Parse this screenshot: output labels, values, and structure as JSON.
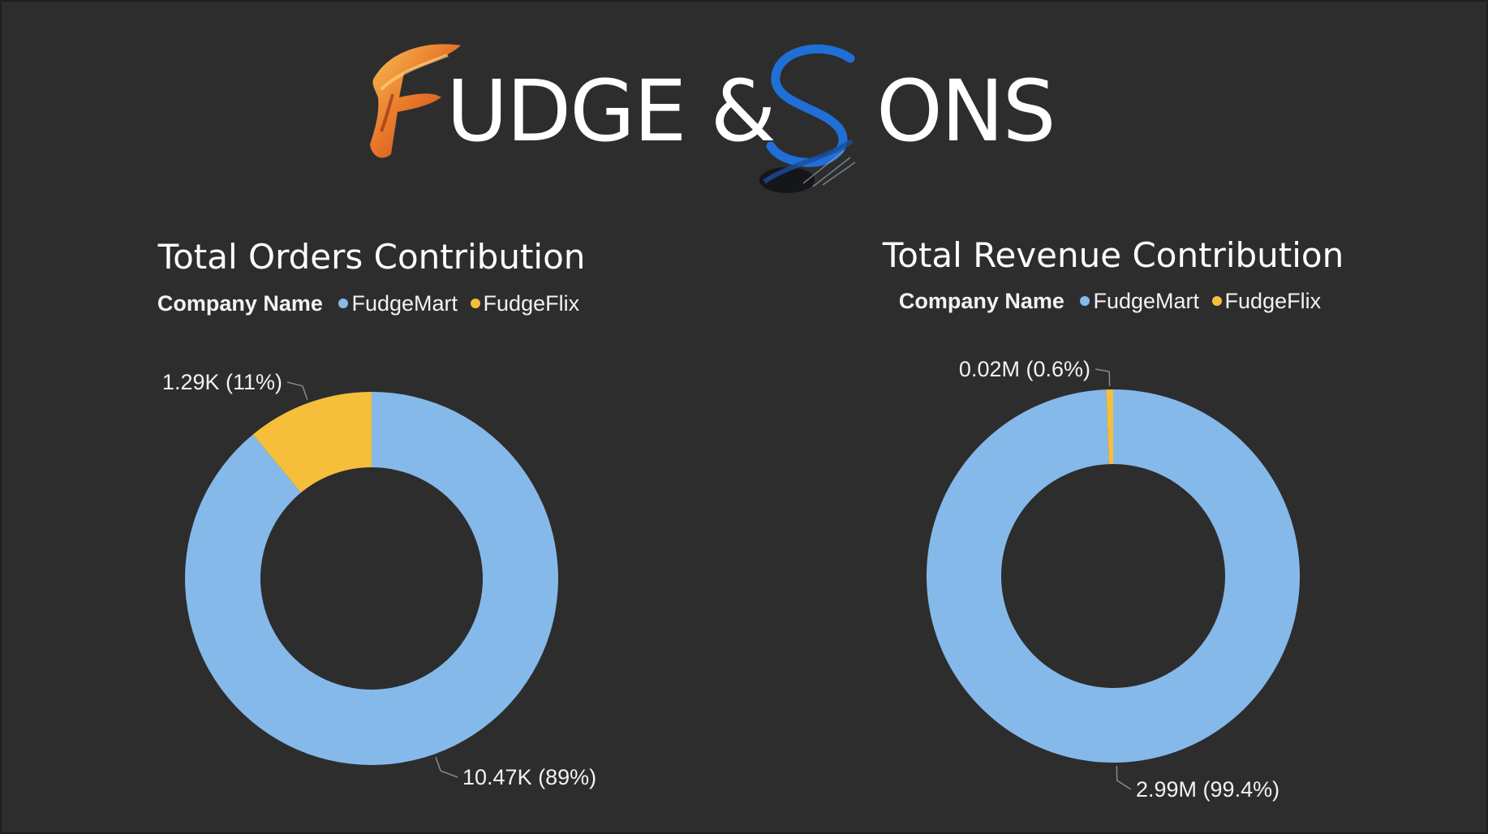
{
  "logo": {
    "word_1": "UDGE &",
    "word_2": "ONS"
  },
  "legend": {
    "title": "Company Name"
  },
  "colors": {
    "fudgemart": "#85b9e9",
    "fudgeflix": "#f5bf3c",
    "background": "#2d2d2d"
  },
  "chart_data": [
    {
      "type": "pie",
      "donut": true,
      "title": "Total Orders Contribution",
      "legend_title": "Company Name",
      "legend_position": "top",
      "categories": [
        "FudgeMart",
        "FudgeFlix"
      ],
      "values": [
        10470,
        1290
      ],
      "value_labels": [
        "10.47K (89%)",
        "1.29K (11%)"
      ],
      "colors": [
        "#85b9e9",
        "#f5bf3c"
      ]
    },
    {
      "type": "pie",
      "donut": true,
      "title": "Total Revenue Contribution",
      "legend_title": "Company Name",
      "legend_position": "top",
      "categories": [
        "FudgeMart",
        "FudgeFlix"
      ],
      "values": [
        2990000,
        18000
      ],
      "value_labels": [
        "2.99M (99.4%)",
        "0.02M (0.6%)"
      ],
      "colors": [
        "#85b9e9",
        "#f5bf3c"
      ]
    }
  ]
}
